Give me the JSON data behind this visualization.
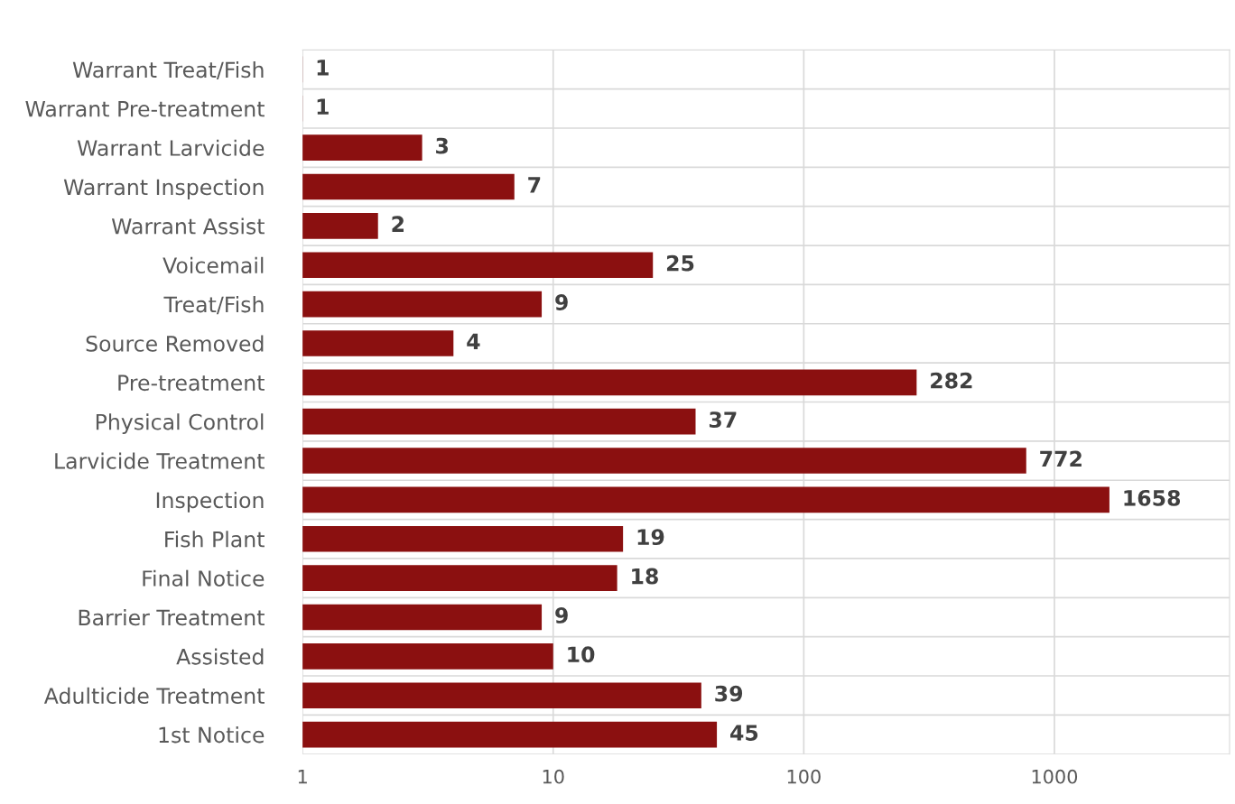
{
  "chart_data": {
    "type": "bar",
    "orientation": "horizontal",
    "log": "x",
    "categories": [
      "Warrant Treat/Fish",
      "Warrant Pre-treatment",
      "Warrant Larvicide",
      "Warrant Inspection",
      "Warrant Assist",
      "Voicemail",
      "Treat/Fish",
      "Source Removed",
      "Pre-treatment",
      "Physical Control",
      "Larvicide Treatment",
      "Inspection",
      "Fish Plant",
      "Final Notice",
      "Barrier Treatment",
      "Assisted",
      "Adulticide Treatment",
      "1st Notice"
    ],
    "values": [
      1,
      1,
      3,
      7,
      2,
      25,
      9,
      4,
      282,
      37,
      772,
      1658,
      19,
      18,
      9,
      10,
      39,
      45
    ],
    "color": "#8b1010",
    "xlim": [
      1,
      5000
    ],
    "xticks": [
      1,
      10,
      100,
      1000
    ],
    "grid": true,
    "data_labels": true
  }
}
